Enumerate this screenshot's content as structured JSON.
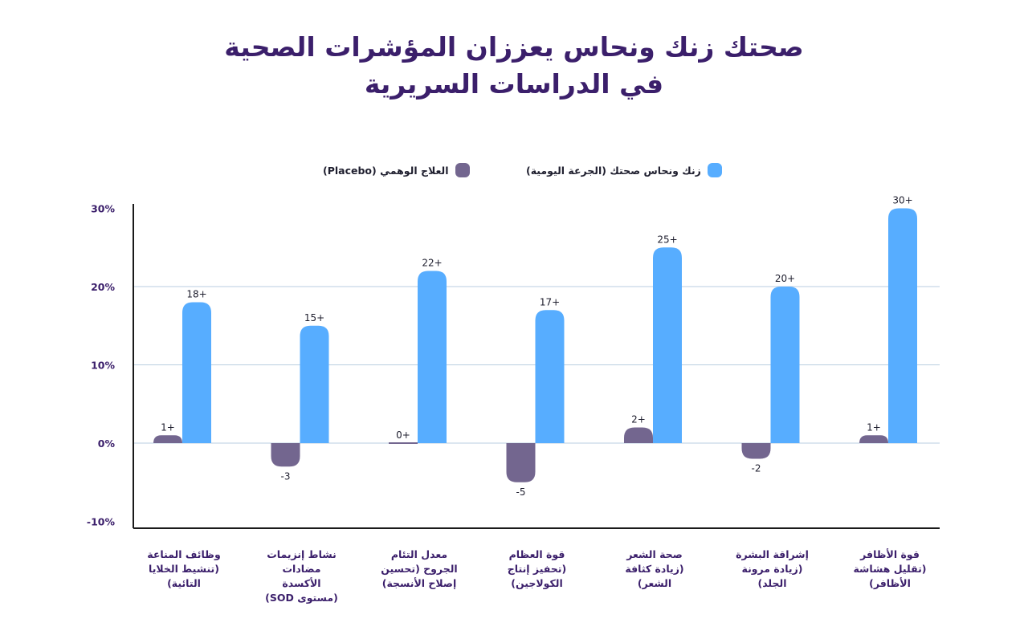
{
  "title": {
    "line1": "صحتك زنك ونحاس يعززان المؤشرات الصحية",
    "line2": "في الدراسات السريرية"
  },
  "colors": {
    "title": "#3b1f6b",
    "zinc": "#57adff",
    "placebo": "#73668f",
    "axis": "#1a1a1a",
    "grid": "#b8cde0"
  },
  "chart_data": {
    "type": "bar",
    "ylim": [
      -10,
      30
    ],
    "yticks": [
      "-10%",
      "0%",
      "10%",
      "20%",
      "30%"
    ],
    "ytick_values": [
      -10,
      0,
      10,
      20,
      30
    ],
    "grid": true,
    "legend_position": "top",
    "categories": [
      "وظائف المناعة (تنشيط الخلايا التائية)",
      "نشاط إنزيمات مضادات الأكسدة (مستوى SOD)",
      "معدل التئام الجروح (تحسين إصلاح الأنسجة)",
      "قوة العظام (تحفيز إنتاج الكولاجين)",
      "صحة الشعر (زيادة كثافة الشعر)",
      "إشراقة البشرة (زيادة مرونة الجلد)",
      "قوة الأظافر (تقليل هشاشة الأظافر)"
    ],
    "category_lines": [
      [
        "وظائف المناعة",
        "(تنشيط الخلايا",
        "التائية)"
      ],
      [
        "نشاط إنزيمات",
        "مضادات",
        "الأكسدة",
        "(مستوى SOD)"
      ],
      [
        "معدل التئام",
        "الجروح (تحسين",
        "إصلاح الأنسجة)"
      ],
      [
        "قوة العظام",
        "(تحفيز إنتاج",
        "الكولاجين)"
      ],
      [
        "صحة الشعر",
        "(زيادة كثافة",
        "الشعر)"
      ],
      [
        "إشراقة البشرة",
        "(زيادة مرونة",
        "الجلد)"
      ],
      [
        "قوة الأظافر",
        "(تقليل هشاشة",
        "الأظافر)"
      ]
    ],
    "series": [
      {
        "name": "العلاج الوهمي (Placebo)",
        "values": [
          1,
          -3,
          0,
          -5,
          2,
          -2,
          1
        ],
        "labels": [
          "1+",
          "-3",
          "0+",
          "-5",
          "2+",
          "-2",
          "1+"
        ]
      },
      {
        "name": "زنك ونحاس صحتك (الجرعة اليومية)",
        "values": [
          18,
          15,
          22,
          17,
          25,
          20,
          30
        ],
        "labels": [
          "18+",
          "15+",
          "22+",
          "17+",
          "25+",
          "20+",
          "30+"
        ]
      }
    ]
  }
}
